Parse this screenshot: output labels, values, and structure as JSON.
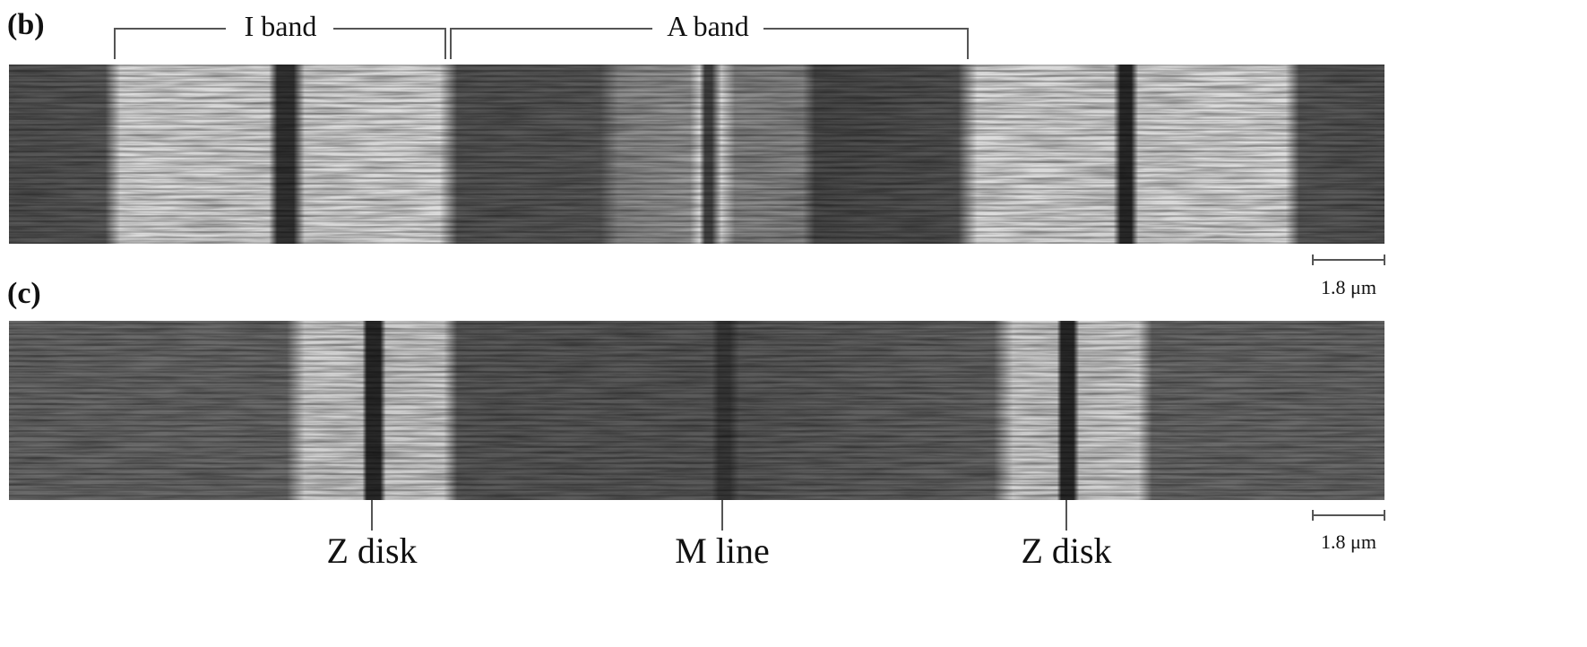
{
  "panel_b": {
    "label": "(b)",
    "brackets": [
      "I band",
      "A band"
    ],
    "scale_bar": "1.8 μm"
  },
  "panel_c": {
    "label": "(c)",
    "markers": [
      "Z disk",
      "M line",
      "Z disk"
    ],
    "scale_bar": "1.8 μm"
  }
}
